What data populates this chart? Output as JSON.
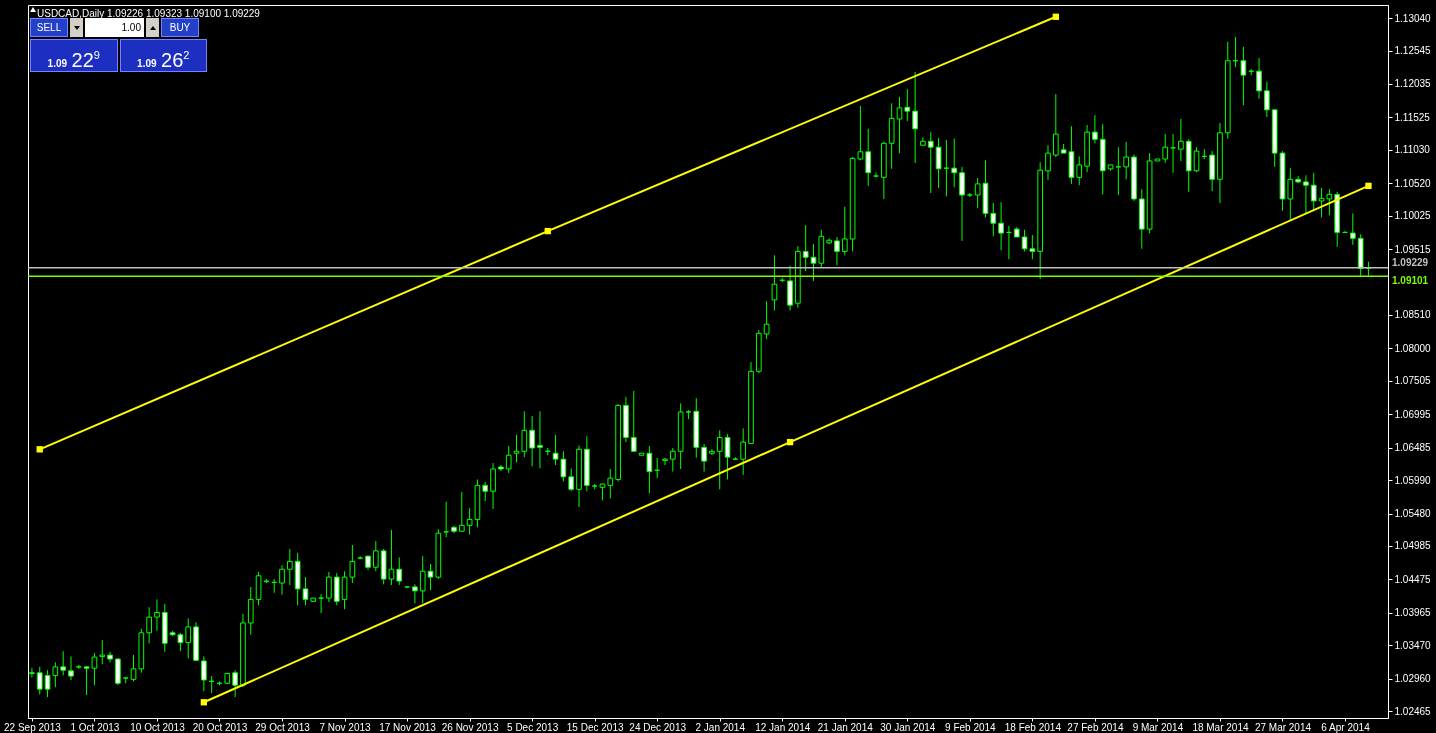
{
  "chart_data": {
    "type": "candlestick",
    "title": "USDCAD,Daily 1.09226 1.09323 1.09100 1.09229",
    "annotations": [
      "SELL",
      "1.00",
      "BUY",
      "1.09 22$^{9}$",
      "1.09 26$^{2}$"
    ],
    "categories": [
      "22 Sep 2013",
      null,
      null,
      null,
      null,
      null,
      null,
      null,
      "1 Oct 2013",
      null,
      null,
      null,
      null,
      null,
      null,
      null,
      "10 Oct 2013",
      null,
      null,
      null,
      null,
      null,
      null,
      null,
      "20 Oct 2013",
      null,
      null,
      null,
      null,
      null,
      null,
      null,
      "29 Oct 2013",
      null,
      null,
      null,
      null,
      null,
      null,
      null,
      "7 Nov 2013",
      null,
      null,
      null,
      null,
      null,
      null,
      null,
      "17 Nov 2013",
      null,
      null,
      null,
      null,
      null,
      null,
      null,
      "26 Nov 2013",
      null,
      null,
      null,
      null,
      null,
      null,
      null,
      "5 Dec 2013",
      null,
      null,
      null,
      null,
      null,
      null,
      null,
      "15 Dec 2013",
      null,
      null,
      null,
      null,
      null,
      null,
      null,
      "24 Dec 2013",
      null,
      null,
      null,
      null,
      null,
      null,
      null,
      "2 Jan 2014",
      null,
      null,
      null,
      null,
      null,
      null,
      null,
      "12 Jan 2014",
      null,
      null,
      null,
      null,
      null,
      null,
      null,
      "21 Jan 2014",
      null,
      null,
      null,
      null,
      null,
      null,
      null,
      "30 Jan 2014",
      null,
      null,
      null,
      null,
      null,
      null,
      null,
      "9 Feb 2014",
      null,
      null,
      null,
      null,
      null,
      null,
      null,
      "18 Feb 2014",
      null,
      null,
      null,
      null,
      null,
      null,
      null,
      "27 Feb 2014",
      null,
      null,
      null,
      null,
      null,
      null,
      null,
      "9 Mar 2014",
      null,
      null,
      null,
      null,
      null,
      null,
      null,
      "18 Mar 2014",
      null,
      null,
      null,
      null,
      null,
      null,
      null,
      "27 Mar 2014",
      null,
      null,
      null,
      null,
      null,
      null,
      null,
      "6 Apr 2014",
      null,
      null,
      null
    ],
    "ohlc": [
      [
        1.0305,
        1.0312,
        1.0298,
        1.0304
      ],
      [
        1.0305,
        1.0314,
        1.0272,
        1.028
      ],
      [
        1.0301,
        1.0309,
        1.0268,
        1.028
      ],
      [
        1.0301,
        1.0321,
        1.0283,
        1.0314
      ],
      [
        1.0314,
        1.0338,
        1.0301,
        1.0309
      ],
      [
        1.0308,
        1.033,
        1.0294,
        1.03
      ],
      [
        1.0314,
        1.0317,
        1.0311,
        1.0314
      ],
      [
        1.0314,
        1.0315,
        1.0271,
        1.0312
      ],
      [
        1.0312,
        1.0335,
        1.0286,
        1.0329
      ],
      [
        1.033,
        1.0355,
        1.0318,
        1.0332
      ],
      [
        1.0332,
        1.0337,
        1.0321,
        1.0326
      ],
      [
        1.0326,
        1.0327,
        1.0286,
        1.0289
      ],
      [
        1.0297,
        1.0298,
        1.0289,
        1.0297
      ],
      [
        1.0295,
        1.0332,
        1.0292,
        1.0311
      ],
      [
        1.0311,
        1.0372,
        1.0305,
        1.0366
      ],
      [
        1.0366,
        1.0405,
        1.035,
        1.039
      ],
      [
        1.039,
        1.0417,
        1.0369,
        1.0397
      ],
      [
        1.0397,
        1.041,
        1.0337,
        1.035
      ],
      [
        1.0366,
        1.0369,
        1.0361,
        1.0363
      ],
      [
        1.0363,
        1.0366,
        1.0338,
        1.0351
      ],
      [
        1.0351,
        1.0388,
        1.0327,
        1.0375
      ],
      [
        1.0375,
        1.0382,
        1.0323,
        1.0324
      ],
      [
        1.0323,
        1.033,
        1.0277,
        1.0294
      ],
      [
        1.0292,
        1.03,
        1.0274,
        1.0292
      ],
      [
        1.0289,
        1.0292,
        1.0286,
        1.0289
      ],
      [
        1.0289,
        1.0305,
        1.0288,
        1.0304
      ],
      [
        1.0305,
        1.0309,
        1.0268,
        1.0286
      ],
      [
        1.0286,
        1.0395,
        1.0283,
        1.0381
      ],
      [
        1.0381,
        1.0436,
        1.0363,
        1.0417
      ],
      [
        1.0417,
        1.0459,
        1.0408,
        1.0453
      ],
      [
        1.0444,
        1.0448,
        1.0442,
        1.0445
      ],
      [
        1.0443,
        1.0448,
        1.0427,
        1.0443
      ],
      [
        1.0442,
        1.0469,
        1.0424,
        1.0463
      ],
      [
        1.0463,
        1.0494,
        1.0439,
        1.0475
      ],
      [
        1.0475,
        1.0488,
        1.0408,
        1.0433
      ],
      [
        1.0433,
        1.0451,
        1.0408,
        1.0417
      ],
      [
        1.0414,
        1.0419,
        1.0414,
        1.0419
      ],
      [
        1.0419,
        1.0425,
        1.0396,
        1.0419
      ],
      [
        1.0419,
        1.0459,
        1.0413,
        1.0451
      ],
      [
        1.0451,
        1.0457,
        1.0408,
        1.0414
      ],
      [
        1.0417,
        1.046,
        1.0402,
        1.0451
      ],
      [
        1.0451,
        1.05,
        1.0442,
        1.0475
      ],
      [
        1.048,
        1.0483,
        1.0478,
        1.048
      ],
      [
        1.0483,
        1.0484,
        1.0462,
        1.0466
      ],
      [
        1.0466,
        1.0506,
        1.046,
        1.0491
      ],
      [
        1.0491,
        1.0494,
        1.044,
        1.0448
      ],
      [
        1.0448,
        1.0523,
        1.0439,
        1.0463
      ],
      [
        1.0463,
        1.0481,
        1.0439,
        1.0445
      ],
      [
        1.0436,
        1.0437,
        1.0434,
        1.0436
      ],
      [
        1.0436,
        1.044,
        1.0411,
        1.043
      ],
      [
        1.043,
        1.0483,
        1.0411,
        1.046
      ],
      [
        1.046,
        1.0471,
        1.0431,
        1.0451
      ],
      [
        1.0451,
        1.0524,
        1.0448,
        1.0518
      ],
      [
        1.052,
        1.0566,
        1.0512,
        1.052
      ],
      [
        1.0527,
        1.0529,
        1.0518,
        1.0521
      ],
      [
        1.0521,
        1.0581,
        1.052,
        1.053
      ],
      [
        1.053,
        1.0556,
        1.0516,
        1.0539
      ],
      [
        1.0539,
        1.06,
        1.0527,
        1.0591
      ],
      [
        1.0591,
        1.0596,
        1.0567,
        1.0582
      ],
      [
        1.0582,
        1.0625,
        1.0555,
        1.0616
      ],
      [
        1.0619,
        1.0622,
        1.0613,
        1.0616
      ],
      [
        1.0616,
        1.0651,
        1.061,
        1.0637
      ],
      [
        1.064,
        1.0668,
        1.0626,
        1.0643
      ],
      [
        1.0643,
        1.0704,
        1.0634,
        1.0675
      ],
      [
        1.0675,
        1.0697,
        1.062,
        1.0648
      ],
      [
        1.0652,
        1.0704,
        1.0617,
        1.0649
      ],
      [
        1.0643,
        1.0648,
        1.0637,
        1.0643
      ],
      [
        1.064,
        1.0668,
        1.0622,
        1.0631
      ],
      [
        1.0631,
        1.0643,
        1.0597,
        1.0604
      ],
      [
        1.0604,
        1.0617,
        1.0582,
        1.0585
      ],
      [
        1.0585,
        1.0652,
        1.0558,
        1.0646
      ],
      [
        1.0646,
        1.0666,
        1.0582,
        1.0591
      ],
      [
        1.059,
        1.0593,
        1.0585,
        1.059
      ],
      [
        1.0588,
        1.0594,
        1.0568,
        1.0593
      ],
      [
        1.0591,
        1.0616,
        1.0571,
        1.0602
      ],
      [
        1.06,
        1.0715,
        1.0597,
        1.0713
      ],
      [
        1.0713,
        1.0726,
        1.0657,
        1.0664
      ],
      [
        1.0664,
        1.0735,
        1.0643,
        1.0643
      ],
      [
        1.0637,
        1.064,
        1.0637,
        1.064
      ],
      [
        1.064,
        1.0651,
        1.0579,
        1.0612
      ],
      [
        1.0614,
        1.0633,
        1.0602,
        1.0614
      ],
      [
        1.0629,
        1.0633,
        1.0622,
        1.0631
      ],
      [
        1.0631,
        1.0648,
        1.0612,
        1.0643
      ],
      [
        1.0643,
        1.0716,
        1.0616,
        1.0703
      ],
      [
        1.0703,
        1.0706,
        1.0692,
        1.0703
      ],
      [
        1.0704,
        1.0724,
        1.0633,
        1.0649
      ],
      [
        1.0649,
        1.0654,
        1.0612,
        1.0628
      ],
      [
        1.064,
        1.0646,
        1.0637,
        1.0643
      ],
      [
        1.0643,
        1.0675,
        1.0585,
        1.0664
      ],
      [
        1.0664,
        1.0669,
        1.06,
        1.0634
      ],
      [
        1.0631,
        1.0634,
        1.063,
        1.0631
      ],
      [
        1.0631,
        1.0678,
        1.0607,
        1.0657
      ],
      [
        1.0655,
        1.0779,
        1.0655,
        1.0765
      ],
      [
        1.0765,
        1.0828,
        1.0762,
        1.0823
      ],
      [
        1.0822,
        1.0872,
        1.0814,
        1.0837
      ],
      [
        1.0874,
        1.0942,
        1.0858,
        1.0898
      ],
      [
        1.0904,
        1.0907,
        1.0901,
        1.0904
      ],
      [
        1.0903,
        1.0926,
        1.0858,
        1.0866
      ],
      [
        1.0869,
        1.0956,
        1.0862,
        1.0948
      ],
      [
        1.0948,
        1.0988,
        1.0918,
        1.0939
      ],
      [
        1.0939,
        1.0959,
        1.0903,
        1.093
      ],
      [
        1.093,
        1.0981,
        1.0924,
        1.0971
      ],
      [
        1.0961,
        1.0968,
        1.0959,
        1.0965
      ],
      [
        1.0964,
        1.097,
        1.0927,
        1.0948
      ],
      [
        1.0948,
        1.1016,
        1.0942,
        1.0967
      ],
      [
        1.0967,
        1.1092,
        1.0948,
        1.109
      ],
      [
        1.1089,
        1.117,
        1.1087,
        1.11
      ],
      [
        1.11,
        1.1135,
        1.1048,
        1.1068
      ],
      [
        1.1063,
        1.1068,
        1.1061,
        1.1063
      ],
      [
        1.1061,
        1.1115,
        1.1028,
        1.1113
      ],
      [
        1.1113,
        1.1174,
        1.1074,
        1.1151
      ],
      [
        1.115,
        1.1184,
        1.1098,
        1.1167
      ],
      [
        1.1168,
        1.1196,
        1.1147,
        1.1162
      ],
      [
        1.1162,
        1.1222,
        1.1083,
        1.1135
      ],
      [
        1.111,
        1.1122,
        1.111,
        1.1116
      ],
      [
        1.1116,
        1.113,
        1.1037,
        1.1107
      ],
      [
        1.1107,
        1.1121,
        1.1045,
        1.1074
      ],
      [
        1.1075,
        1.1118,
        1.1032,
        1.1075
      ],
      [
        1.1075,
        1.112,
        1.1046,
        1.1068
      ],
      [
        1.1068,
        1.1077,
        1.0964,
        1.1034
      ],
      [
        1.1034,
        1.1037,
        1.1031,
        1.1034
      ],
      [
        1.1034,
        1.106,
        1.1014,
        1.1051
      ],
      [
        1.1052,
        1.1087,
        1.1,
        1.1006
      ],
      [
        1.1006,
        1.1022,
        1.0971,
        1.0991
      ],
      [
        1.0991,
        1.1023,
        1.095,
        1.0976
      ],
      [
        1.0977,
        1.0987,
        1.0936,
        1.0977
      ],
      [
        1.0982,
        1.0985,
        1.097,
        1.097
      ],
      [
        1.097,
        1.0981,
        1.0948,
        1.0952
      ],
      [
        1.0952,
        1.0973,
        1.0936,
        1.0948
      ],
      [
        1.0948,
        1.1084,
        1.0906,
        1.1072
      ],
      [
        1.1071,
        1.111,
        1.1057,
        1.1098
      ],
      [
        1.1095,
        1.1188,
        1.1092,
        1.1127
      ],
      [
        1.1103,
        1.1112,
        1.1098,
        1.1098
      ],
      [
        1.11,
        1.1139,
        1.1051,
        1.1061
      ],
      [
        1.1061,
        1.1093,
        1.1049,
        1.108
      ],
      [
        1.1078,
        1.1141,
        1.1069,
        1.113
      ],
      [
        1.113,
        1.1156,
        1.1113,
        1.1119
      ],
      [
        1.1119,
        1.1142,
        1.1035,
        1.1071
      ],
      [
        1.1074,
        1.108,
        1.1071,
        1.108
      ],
      [
        1.1077,
        1.1107,
        1.1034,
        1.1077
      ],
      [
        1.1077,
        1.1115,
        1.1058,
        1.1092
      ],
      [
        1.1092,
        1.1096,
        1.1025,
        1.1028
      ],
      [
        1.1028,
        1.1043,
        1.0952,
        1.0982
      ],
      [
        1.0982,
        1.1098,
        1.0976,
        1.1086
      ],
      [
        1.1086,
        1.1089,
        1.1086,
        1.1089
      ],
      [
        1.1089,
        1.1127,
        1.1083,
        1.1107
      ],
      [
        1.1106,
        1.1127,
        1.1068,
        1.1106
      ],
      [
        1.1104,
        1.115,
        1.1086,
        1.1116
      ],
      [
        1.1116,
        1.1119,
        1.1039,
        1.1071
      ],
      [
        1.1071,
        1.1107,
        1.1069,
        1.1101
      ],
      [
        1.1093,
        1.1104,
        1.1089,
        1.1093
      ],
      [
        1.1095,
        1.1101,
        1.104,
        1.1058
      ],
      [
        1.1058,
        1.1144,
        1.1022,
        1.1129
      ],
      [
        1.1129,
        1.1268,
        1.112,
        1.1239
      ],
      [
        1.1239,
        1.1275,
        1.1229,
        1.1239
      ],
      [
        1.1239,
        1.126,
        1.1171,
        1.1217
      ],
      [
        1.1223,
        1.1226,
        1.1217,
        1.1223
      ],
      [
        1.1223,
        1.1243,
        1.1181,
        1.1193
      ],
      [
        1.1193,
        1.1207,
        1.1153,
        1.1164
      ],
      [
        1.1164,
        1.1165,
        1.1077,
        1.1098
      ],
      [
        1.1098,
        1.1101,
        1.101,
        1.1028
      ],
      [
        1.1028,
        1.1075,
        1.0996,
        1.1058
      ],
      [
        1.1058,
        1.1063,
        1.1052,
        1.1054
      ],
      [
        1.1054,
        1.1064,
        1.1005,
        1.1049
      ],
      [
        1.1049,
        1.1068,
        1.101,
        1.1025
      ],
      [
        1.1025,
        1.1045,
        1.1,
        1.1029
      ],
      [
        1.1028,
        1.1043,
        1.1003,
        1.1035
      ],
      [
        1.1035,
        1.1039,
        1.0955,
        1.0977
      ],
      [
        1.0977,
        1.0979,
        1.0976,
        1.0977
      ],
      [
        1.0976,
        1.1006,
        1.0958,
        1.0968
      ],
      [
        1.0968,
        1.0974,
        1.0909,
        1.0922
      ],
      [
        1.09226,
        1.09323,
        1.091,
        1.09229
      ]
    ],
    "series": [
      {
        "type": "line",
        "color": "#ffff00",
        "values": [
          null,
          1.0646,
          null,
          null,
          null,
          null,
          null,
          null,
          null,
          null,
          null,
          null,
          null,
          null,
          null,
          null,
          null,
          null,
          null,
          null,
          null,
          null,
          null,
          null,
          null,
          null,
          null,
          null,
          null,
          null,
          null,
          null,
          null,
          null,
          null,
          null,
          null,
          null,
          null,
          null,
          null,
          null,
          null,
          null,
          null,
          null,
          null,
          null,
          null,
          null,
          null,
          null,
          null,
          null,
          null,
          null,
          null,
          null,
          null,
          null,
          null,
          null,
          null,
          null,
          null,
          null,
          1.0979,
          null,
          null,
          null,
          null,
          null,
          null,
          null,
          null,
          null,
          null,
          null,
          null,
          null,
          null,
          null,
          null,
          null,
          null,
          null,
          null,
          null,
          null,
          null,
          null,
          null,
          null,
          null,
          null,
          null,
          null,
          null,
          null,
          null,
          null,
          null,
          null,
          null,
          null,
          null,
          null,
          null,
          null,
          null,
          null,
          null,
          null,
          null,
          null,
          null,
          null,
          null,
          null,
          null,
          null,
          null,
          null,
          null,
          null,
          null,
          null,
          null,
          null,
          null,
          null,
          1.1306,
          null,
          null,
          null,
          null,
          null,
          null,
          null,
          null,
          null,
          null,
          null,
          null,
          null,
          null,
          null,
          null,
          null,
          null,
          null,
          null,
          null,
          null,
          null,
          null,
          null,
          null,
          null,
          null,
          null,
          null,
          null,
          null,
          null,
          null,
          null,
          null,
          null,
          null,
          null,
          null
        ]
      },
      {
        "type": "line",
        "color": "#ffff00",
        "values": [
          null,
          null,
          null,
          null,
          null,
          null,
          null,
          null,
          null,
          null,
          null,
          null,
          null,
          null,
          null,
          null,
          null,
          null,
          null,
          null,
          null,
          null,
          1.026,
          null,
          null,
          null,
          null,
          null,
          null,
          null,
          null,
          null,
          null,
          null,
          null,
          null,
          null,
          null,
          null,
          null,
          null,
          null,
          null,
          null,
          null,
          null,
          null,
          null,
          null,
          null,
          null,
          null,
          null,
          null,
          null,
          null,
          null,
          null,
          null,
          null,
          null,
          null,
          null,
          null,
          null,
          null,
          null,
          null,
          null,
          null,
          null,
          null,
          null,
          null,
          null,
          null,
          null,
          null,
          null,
          null,
          null,
          null,
          null,
          null,
          null,
          null,
          null,
          null,
          null,
          null,
          null,
          null,
          null,
          null,
          null,
          null,
          null,
          1.0657,
          null,
          null,
          null,
          null,
          null,
          null,
          null,
          null,
          null,
          null,
          null,
          null,
          null,
          null,
          null,
          null,
          null,
          null,
          null,
          null,
          null,
          null,
          null,
          null,
          null,
          null,
          null,
          null,
          null,
          null,
          null,
          null,
          null,
          null,
          null,
          null,
          null,
          null,
          null,
          null,
          null,
          null,
          null,
          null,
          null,
          null,
          null,
          null,
          null,
          null,
          null,
          null,
          null,
          null,
          null,
          null,
          null,
          null,
          null,
          null,
          null,
          null,
          null,
          null,
          null,
          null,
          null,
          null,
          null,
          null,
          null,
          null,
          null,
          1.1048
        ]
      }
    ],
    "marker": "square",
    "line_style": "solid",
    "ylim": [
      1.0236,
      1.1324
    ],
    "yticks": [
      1.02465,
      {
        "value": 1.0296,
        "label": "1.02960"
      },
      {
        "value": 1.0347,
        "label": "1.03470"
      },
      1.03965,
      1.04475,
      1.04985,
      {
        "value": 1.0548,
        "label": "1.05480"
      },
      {
        "value": 1.0599,
        "label": "1.05990"
      },
      1.06485,
      1.06995,
      1.07505,
      {
        "value": 1.08,
        "label": "1.08000"
      },
      {
        "value": 1.0851,
        "label": "1.08510"
      },
      1.09515,
      1.10025,
      {
        "value": 1.1052,
        "label": "1.10520"
      },
      {
        "value": 1.1103,
        "label": "1.11030"
      },
      1.11525,
      1.12035,
      1.12545,
      {
        "value": 1.1304,
        "label": "1.13040"
      }
    ],
    "ref_lines": [
      {
        "axis": "y",
        "value": 1.09229,
        "label": "1.09229",
        "color": "#c0c0c0"
      },
      {
        "axis": "y",
        "value": 1.09101,
        "label": "1.09101",
        "color": "#7cfc00"
      }
    ]
  }
}
